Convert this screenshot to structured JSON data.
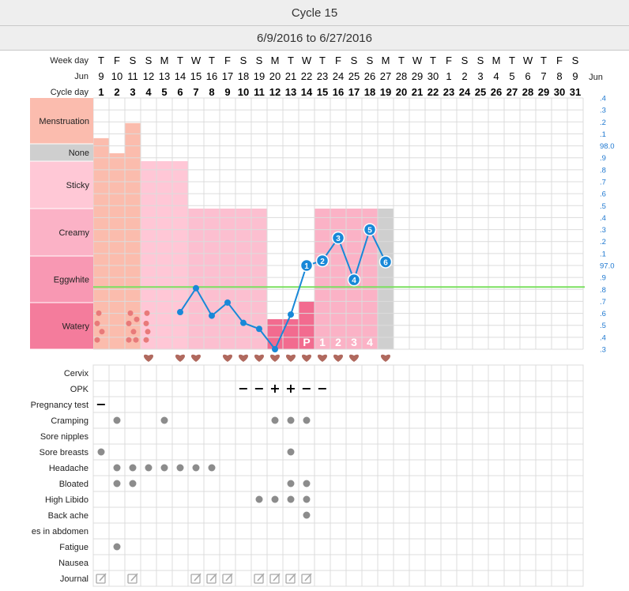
{
  "header": {
    "title": "Cycle 15",
    "range": "6/9/2016 to 6/27/2016"
  },
  "chart_data": {
    "type": "line",
    "title": "Cycle 15",
    "subtitle": "6/9/2016 to 6/27/2016",
    "rows": {
      "weekday_label": "Week day",
      "month_label": "Jun",
      "cycleday_label": "Cycle day"
    },
    "weekdays": [
      "T",
      "F",
      "S",
      "S",
      "M",
      "T",
      "W",
      "T",
      "F",
      "S",
      "S",
      "M",
      "T",
      "W",
      "T",
      "F",
      "S",
      "S",
      "M",
      "T",
      "W",
      "T",
      "F",
      "S",
      "S",
      "M",
      "T",
      "W",
      "T",
      "F",
      "S"
    ],
    "dates": [
      "9",
      "10",
      "11",
      "12",
      "13",
      "14",
      "15",
      "16",
      "17",
      "18",
      "19",
      "20",
      "21",
      "22",
      "23",
      "24",
      "25",
      "26",
      "27",
      "28",
      "29",
      "30",
      "1",
      "2",
      "3",
      "4",
      "5",
      "6",
      "7",
      "8",
      "9"
    ],
    "cycle_days": [
      "1",
      "2",
      "3",
      "4",
      "5",
      "6",
      "7",
      "8",
      "9",
      "10",
      "11",
      "12",
      "13",
      "14",
      "15",
      "16",
      "17",
      "18",
      "19",
      "20",
      "21",
      "22",
      "23",
      "24",
      "25",
      "26",
      "27",
      "28",
      "29",
      "30",
      "31"
    ],
    "month_right": "Jun",
    "mucus_categories": [
      "Menstruation",
      "None",
      "Sticky",
      "Creamy",
      "Eggwhite",
      "Watery"
    ],
    "temp_ticks": [
      ".4",
      ".3",
      ".2",
      ".1",
      "98.0",
      ".9",
      ".8",
      ".7",
      ".6",
      ".5",
      ".4",
      ".3",
      ".2",
      ".1",
      "97.0",
      ".9",
      ".8",
      ".7",
      ".6",
      ".5",
      ".4",
      ".3"
    ],
    "ylim": [
      96.3,
      98.4
    ],
    "coverline": 96.82,
    "bleeding": [
      {
        "day": 1,
        "level": 0.84
      },
      {
        "day": 2,
        "level": 0.78
      },
      {
        "day": 3,
        "level": 0.9
      }
    ],
    "spotting_days": [
      1,
      3,
      4
    ],
    "mucus": [
      {
        "day": 4,
        "level": "Sticky"
      },
      {
        "day": 5,
        "level": "Sticky"
      },
      {
        "day": 6,
        "level": "Sticky"
      },
      {
        "day": 7,
        "level": "Creamy"
      },
      {
        "day": 8,
        "level": "Creamy"
      },
      {
        "day": 9,
        "level": "Creamy"
      },
      {
        "day": 10,
        "level": "Creamy"
      },
      {
        "day": 11,
        "level": "Creamy"
      },
      {
        "day": 12,
        "level": "Watery"
      },
      {
        "day": 13,
        "level": "Watery"
      },
      {
        "day": 14,
        "level": "Watery"
      },
      {
        "day": 15,
        "level": "Creamy"
      },
      {
        "day": 16,
        "level": "Creamy"
      },
      {
        "day": 17,
        "level": "Creamy"
      },
      {
        "day": 18,
        "level": "Creamy"
      },
      {
        "day": 19,
        "level": "Creamy"
      }
    ],
    "temperatures": [
      {
        "day": 6,
        "value": 96.61
      },
      {
        "day": 7,
        "value": 96.81
      },
      {
        "day": 8,
        "value": 96.58
      },
      {
        "day": 9,
        "value": 96.69
      },
      {
        "day": 10,
        "value": 96.52
      },
      {
        "day": 11,
        "value": 96.47
      },
      {
        "day": 12,
        "value": 96.3
      },
      {
        "day": 13,
        "value": 96.59
      },
      {
        "day": 14,
        "value": 97.0,
        "label": "1"
      },
      {
        "day": 15,
        "value": 97.04,
        "label": "2"
      },
      {
        "day": 16,
        "value": 97.23,
        "label": "3"
      },
      {
        "day": 17,
        "value": 96.88,
        "label": "4"
      },
      {
        "day": 18,
        "value": 97.3,
        "label": "5"
      },
      {
        "day": 19,
        "value": 97.03,
        "label": "6"
      }
    ],
    "luteal_labels": [
      {
        "day": 14,
        "text": "P"
      },
      {
        "day": 15,
        "text": "1"
      },
      {
        "day": 16,
        "text": "2"
      },
      {
        "day": 17,
        "text": "3"
      },
      {
        "day": 18,
        "text": "4"
      }
    ],
    "intercourse_days": [
      4,
      6,
      7,
      9,
      10,
      11,
      12,
      13,
      14,
      15,
      16,
      17,
      19
    ],
    "symptom_rows": [
      "Cervix",
      "OPK",
      "Pregnancy test",
      "Cramping",
      "Sore nipples",
      "Sore breasts",
      "Headache",
      "Bloated",
      "High Libido",
      "Back ache",
      "es in abdomen",
      "Fatigue",
      "Nausea",
      "Journal"
    ],
    "opk": [
      {
        "day": 10,
        "value": "−"
      },
      {
        "day": 11,
        "value": "−"
      },
      {
        "day": 12,
        "value": "+"
      },
      {
        "day": 13,
        "value": "+"
      },
      {
        "day": 14,
        "value": "−"
      },
      {
        "day": 15,
        "value": "−"
      }
    ],
    "pregnancy_test": [
      {
        "day": 1,
        "value": "−"
      }
    ],
    "symptoms": {
      "Cramping": [
        2,
        5,
        12,
        13,
        14
      ],
      "Sore breasts": [
        1,
        13
      ],
      "Headache": [
        2,
        3,
        4,
        5,
        6,
        7,
        8
      ],
      "Bloated": [
        2,
        3,
        13,
        14
      ],
      "High Libido": [
        11,
        12,
        13,
        14
      ],
      "Back ache": [
        14
      ],
      "Fatigue": [
        2
      ]
    },
    "journal_days": [
      1,
      3,
      7,
      8,
      9,
      11,
      12,
      13,
      14
    ],
    "colors": {
      "menstruation": "#fcc0b0",
      "none": "#cccccc",
      "sticky": "#ffc9d8",
      "creamy": "#fbb3c8",
      "eggwhite": "#f99ab5",
      "watery": "#f77d9d",
      "temp": "#1888d8",
      "coverline": "#7be060",
      "heart": "#b0695e",
      "spot": "#e87a7a",
      "dot": "#8c8c8c"
    }
  }
}
